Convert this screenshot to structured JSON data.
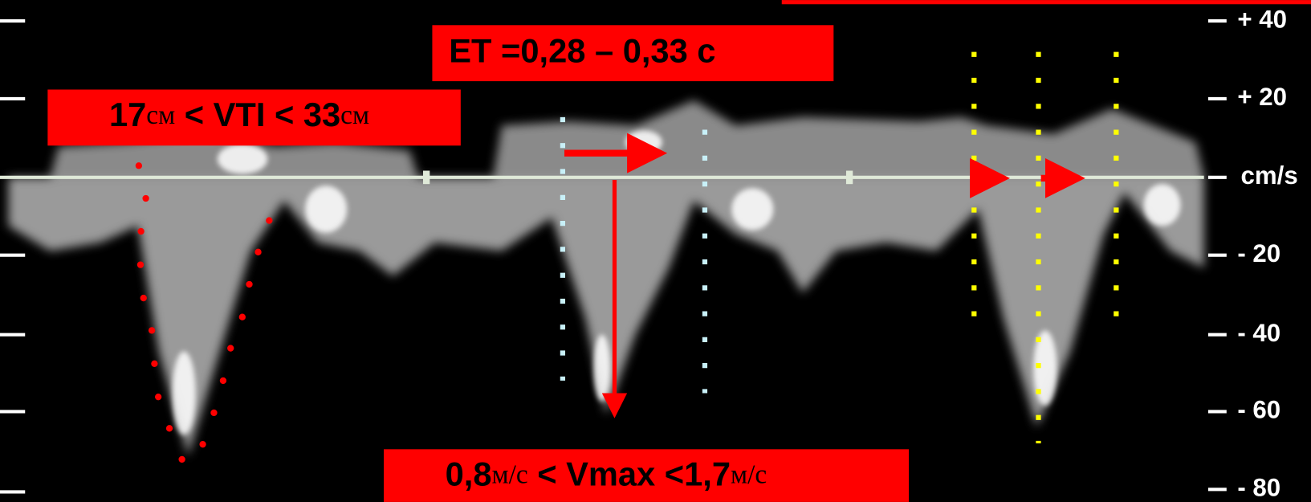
{
  "annotations": {
    "et": "ET =0,28 – 0,33 c",
    "vti": [
      "17",
      "см",
      " < VTI < 33",
      "см"
    ],
    "vmax": [
      "0,8",
      "м/с",
      " < Vmax <1,7",
      "м/с"
    ]
  },
  "scale": {
    "labels": [
      "+ 40",
      "+ 20",
      "cm/s",
      "- 20",
      "- 40",
      "- 60",
      "- 80"
    ]
  }
}
